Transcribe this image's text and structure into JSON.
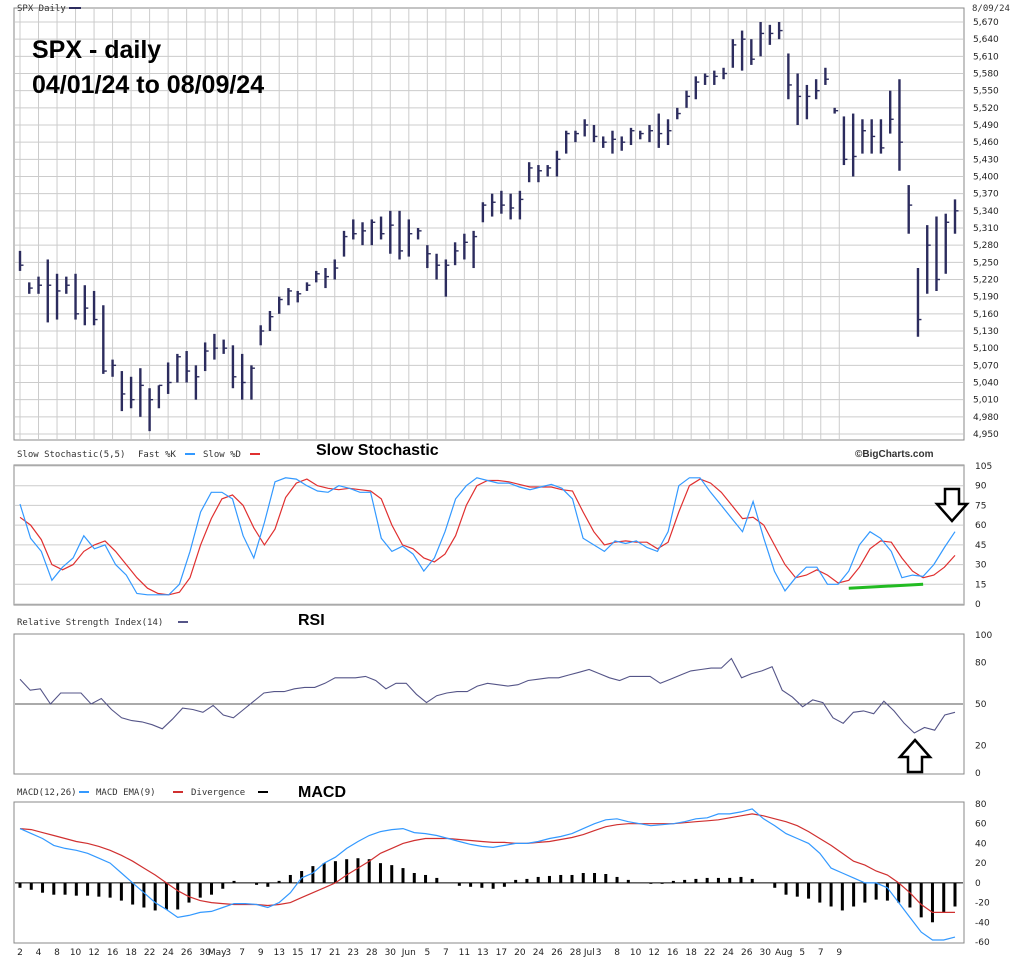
{
  "header": {
    "symbol_label": "SPX Daily",
    "date_label": "8/09/24",
    "watermark": "©BigCharts.com"
  },
  "annotations": {
    "title_line1": "SPX - daily",
    "title_line2": "04/01/24 to 08/09/24",
    "stoch_title": "Slow Stochastic",
    "rsi_title": "RSI",
    "macd_title": "MACD"
  },
  "colors": {
    "bar": "#2c2c5e",
    "fast": "#3399ff",
    "slow": "#e03030",
    "rsi": "#555588",
    "macd": "#3399ff",
    "ema": "#d03030",
    "hist": "#000000",
    "trend": "#22bb22",
    "grid": "#cccccc"
  },
  "chart_data": [
    {
      "type": "ohlc",
      "name": "price",
      "ylim": [
        4950,
        5670
      ],
      "yticks": [
        "5,670",
        "5,640",
        "5,610",
        "5,580",
        "5,550",
        "5,520",
        "5,490",
        "5,460",
        "5,430",
        "5,400",
        "5,370",
        "5,340",
        "5,310",
        "5,280",
        "5,250",
        "5,220",
        "5,190",
        "5,160",
        "5,130",
        "5,100",
        "5,070",
        "5,040",
        "5,010",
        "4,980",
        "4,950"
      ],
      "bars": [
        [
          5270,
          5235,
          5245
        ],
        [
          5215,
          5195,
          5205
        ],
        [
          5225,
          5195,
          5210
        ],
        [
          5255,
          5145,
          5210
        ],
        [
          5230,
          5150,
          5200
        ],
        [
          5225,
          5195,
          5210
        ],
        [
          5230,
          5150,
          5160
        ],
        [
          5210,
          5140,
          5170
        ],
        [
          5200,
          5140,
          5150
        ],
        [
          5175,
          5055,
          5060
        ],
        [
          5080,
          5050,
          5070
        ],
        [
          5060,
          4990,
          5020
        ],
        [
          5050,
          4995,
          5010
        ],
        [
          5065,
          4980,
          5035
        ],
        [
          5030,
          4955,
          5010
        ],
        [
          5035,
          4995,
          5035
        ],
        [
          5075,
          5020,
          5040
        ],
        [
          5090,
          5040,
          5085
        ],
        [
          5095,
          5040,
          5060
        ],
        [
          5070,
          5010,
          5050
        ],
        [
          5110,
          5060,
          5095
        ],
        [
          5125,
          5080,
          5100
        ],
        [
          5115,
          5090,
          5100
        ],
        [
          5105,
          5030,
          5050
        ],
        [
          5090,
          5010,
          5040
        ],
        [
          5070,
          5010,
          5065
        ],
        [
          5140,
          5105,
          5130
        ],
        [
          5165,
          5130,
          5155
        ],
        [
          5190,
          5160,
          5185
        ],
        [
          5205,
          5175,
          5200
        ],
        [
          5200,
          5180,
          5195
        ],
        [
          5215,
          5200,
          5210
        ],
        [
          5235,
          5215,
          5230
        ],
        [
          5240,
          5205,
          5225
        ],
        [
          5255,
          5220,
          5240
        ],
        [
          5305,
          5260,
          5295
        ],
        [
          5325,
          5290,
          5300
        ],
        [
          5320,
          5280,
          5305
        ],
        [
          5325,
          5280,
          5320
        ],
        [
          5330,
          5290,
          5300
        ],
        [
          5340,
          5265,
          5315
        ],
        [
          5340,
          5255,
          5270
        ],
        [
          5325,
          5260,
          5300
        ],
        [
          5310,
          5290,
          5305
        ],
        [
          5280,
          5240,
          5265
        ],
        [
          5265,
          5220,
          5245
        ],
        [
          5255,
          5190,
          5245
        ],
        [
          5285,
          5245,
          5270
        ],
        [
          5300,
          5255,
          5285
        ],
        [
          5305,
          5240,
          5295
        ],
        [
          5355,
          5320,
          5350
        ],
        [
          5370,
          5330,
          5355
        ],
        [
          5375,
          5335,
          5350
        ],
        [
          5370,
          5325,
          5345
        ],
        [
          5375,
          5325,
          5360
        ],
        [
          5425,
          5390,
          5415
        ],
        [
          5420,
          5390,
          5410
        ],
        [
          5420,
          5400,
          5415
        ],
        [
          5445,
          5400,
          5430
        ],
        [
          5480,
          5440,
          5475
        ],
        [
          5480,
          5460,
          5475
        ],
        [
          5500,
          5470,
          5490
        ],
        [
          5490,
          5460,
          5470
        ],
        [
          5470,
          5450,
          5460
        ],
        [
          5480,
          5440,
          5465
        ],
        [
          5470,
          5445,
          5460
        ],
        [
          5485,
          5455,
          5480
        ],
        [
          5480,
          5465,
          5475
        ],
        [
          5490,
          5460,
          5480
        ],
        [
          5510,
          5450,
          5475
        ],
        [
          5500,
          5455,
          5480
        ],
        [
          5520,
          5500,
          5510
        ],
        [
          5550,
          5520,
          5540
        ],
        [
          5575,
          5535,
          5565
        ],
        [
          5580,
          5560,
          5575
        ],
        [
          5585,
          5560,
          5575
        ],
        [
          5590,
          5570,
          5580
        ],
        [
          5640,
          5590,
          5630
        ],
        [
          5655,
          5585,
          5640
        ],
        [
          5640,
          5595,
          5605
        ],
        [
          5670,
          5610,
          5650
        ],
        [
          5665,
          5630,
          5650
        ],
        [
          5670,
          5640,
          5655
        ],
        [
          5615,
          5535,
          5560
        ],
        [
          5580,
          5490,
          5540
        ],
        [
          5560,
          5500,
          5540
        ],
        [
          5570,
          5535,
          5550
        ],
        [
          5590,
          5560,
          5570
        ],
        [
          5520,
          5510,
          5515
        ],
        [
          5505,
          5420,
          5430
        ],
        [
          5510,
          5400,
          5435
        ],
        [
          5500,
          5440,
          5480
        ],
        [
          5500,
          5440,
          5470
        ],
        [
          5500,
          5440,
          5450
        ],
        [
          5550,
          5475,
          5500
        ],
        [
          5570,
          5410,
          5460
        ],
        [
          5385,
          5300,
          5350
        ],
        [
          5240,
          5120,
          5150
        ],
        [
          5315,
          5195,
          5280
        ],
        [
          5330,
          5200,
          5220
        ],
        [
          5335,
          5230,
          5320
        ],
        [
          5360,
          5300,
          5340
        ]
      ],
      "xticks": [
        {
          "label": "2",
          "i": 0
        },
        {
          "label": "4",
          "i": 2
        },
        {
          "label": "8",
          "i": 4
        },
        {
          "label": "10",
          "i": 6
        },
        {
          "label": "12",
          "i": 8
        },
        {
          "label": "16",
          "i": 10
        },
        {
          "label": "18",
          "i": 12
        },
        {
          "label": "22",
          "i": 14
        },
        {
          "label": "24",
          "i": 16
        },
        {
          "label": "26",
          "i": 18
        },
        {
          "label": "30",
          "i": 20
        },
        {
          "label": "May",
          "i": 21.3
        },
        {
          "label": "3",
          "i": 22.5
        },
        {
          "label": "7",
          "i": 24
        },
        {
          "label": "9",
          "i": 26
        },
        {
          "label": "13",
          "i": 28
        },
        {
          "label": "15",
          "i": 30
        },
        {
          "label": "17",
          "i": 32
        },
        {
          "label": "21",
          "i": 34
        },
        {
          "label": "23",
          "i": 36
        },
        {
          "label": "28",
          "i": 38
        },
        {
          "label": "30",
          "i": 40
        },
        {
          "label": "Jun",
          "i": 42
        },
        {
          "label": "5",
          "i": 44
        },
        {
          "label": "7",
          "i": 46
        },
        {
          "label": "11",
          "i": 48
        },
        {
          "label": "13",
          "i": 50
        },
        {
          "label": "17",
          "i": 52
        },
        {
          "label": "20",
          "i": 54
        },
        {
          "label": "24",
          "i": 56
        },
        {
          "label": "26",
          "i": 58
        },
        {
          "label": "28",
          "i": 60
        },
        {
          "label": "Jul",
          "i": 61.5
        },
        {
          "label": "3",
          "i": 62.5
        },
        {
          "label": "8",
          "i": 64.5
        },
        {
          "label": "10",
          "i": 66.5
        },
        {
          "label": "12",
          "i": 68.5
        },
        {
          "label": "16",
          "i": 70.5
        },
        {
          "label": "18",
          "i": 72.5
        },
        {
          "label": "22",
          "i": 74.5
        },
        {
          "label": "24",
          "i": 76.5
        },
        {
          "label": "26",
          "i": 78.5
        },
        {
          "label": "30",
          "i": 80.5
        },
        {
          "label": "Aug",
          "i": 82.5
        },
        {
          "label": "5",
          "i": 84.5
        },
        {
          "label": "7",
          "i": 86.5
        },
        {
          "label": "9",
          "i": 88.5
        }
      ]
    },
    {
      "type": "line",
      "name": "stochastic",
      "label": "Slow Stochastic(5,5)",
      "series_labels": [
        "Fast %K",
        "Slow %D"
      ],
      "ylim": [
        0,
        105
      ],
      "yticks": [
        "105",
        "90",
        "75",
        "60",
        "45",
        "30",
        "15",
        "0"
      ],
      "fast": [
        76,
        50,
        40,
        18,
        28,
        35,
        52,
        42,
        45,
        30,
        22,
        8,
        7,
        7,
        7,
        15,
        40,
        70,
        85,
        85,
        80,
        52,
        35,
        62,
        93,
        96,
        95,
        90,
        86,
        85,
        90,
        88,
        85,
        85,
        50,
        40,
        44,
        38,
        25,
        35,
        55,
        80,
        90,
        96,
        94,
        92,
        92,
        89,
        87,
        89,
        91,
        88,
        80,
        50,
        45,
        40,
        48,
        46,
        48,
        43,
        40,
        55,
        90,
        96,
        96,
        85,
        75,
        65,
        55,
        78,
        50,
        25,
        10,
        20,
        28,
        28,
        15,
        15,
        25,
        45,
        55,
        50,
        40,
        20,
        22,
        21,
        30,
        43,
        55
      ],
      "slow": [
        66,
        60,
        49,
        30,
        26,
        30,
        40,
        45,
        48,
        40,
        30,
        20,
        12,
        8,
        7,
        9,
        20,
        45,
        65,
        80,
        83,
        75,
        58,
        45,
        57,
        81,
        92,
        95,
        90,
        88,
        87,
        88,
        87,
        86,
        80,
        60,
        45,
        42,
        35,
        32,
        38,
        52,
        75,
        90,
        94,
        94,
        93,
        91,
        89,
        89,
        89,
        87,
        86,
        70,
        55,
        45,
        47,
        48,
        47,
        47,
        42,
        47,
        70,
        90,
        95,
        92,
        85,
        75,
        65,
        66,
        60,
        45,
        30,
        20,
        22,
        26,
        22,
        16,
        18,
        28,
        42,
        48,
        47,
        35,
        25,
        20,
        22,
        28,
        37
      ],
      "trendline": [
        [
          78,
          12
        ],
        [
          85,
          15
        ]
      ],
      "arrow": "down"
    },
    {
      "type": "line",
      "name": "rsi",
      "label": "Relative Strength Index(14)",
      "ylim": [
        0,
        100
      ],
      "yticks": [
        "100",
        "80",
        "50",
        "20",
        "0"
      ],
      "reference_line": 50,
      "values": [
        68,
        60,
        61,
        50,
        58,
        58,
        58,
        50,
        54,
        46,
        40,
        38,
        37,
        35,
        32,
        39,
        47,
        46,
        44,
        49,
        42,
        40,
        46,
        52,
        58,
        59,
        59,
        61,
        62,
        62,
        65,
        69,
        69,
        69,
        70,
        67,
        61,
        65,
        65,
        57,
        51,
        56,
        58,
        59,
        59,
        63,
        65,
        64,
        63,
        64,
        67,
        68,
        69,
        69,
        71,
        73,
        75,
        72,
        69,
        67,
        70,
        70,
        70,
        65,
        68,
        71,
        74,
        75,
        76,
        76,
        83,
        69,
        72,
        74,
        77,
        60,
        55,
        48,
        53,
        51,
        40,
        36,
        44,
        45,
        43,
        52,
        45,
        36,
        29,
        33,
        31,
        42,
        44
      ]
    },
    {
      "type": "line",
      "name": "macd",
      "label": "MACD(12,26)",
      "series_labels": [
        "MACD EMA(9)",
        "Divergence"
      ],
      "ylim": [
        -60,
        80
      ],
      "yticks": [
        "80",
        "60",
        "40",
        "20",
        "0",
        "-20",
        "-40",
        "-60"
      ],
      "macd": [
        55,
        50,
        45,
        38,
        35,
        33,
        30,
        25,
        20,
        10,
        0,
        -10,
        -20,
        -27,
        -35,
        -33,
        -30,
        -29,
        -25,
        -21,
        -21,
        -22,
        -25,
        -20,
        -10,
        5,
        10,
        20,
        26,
        35,
        42,
        48,
        52,
        54,
        55,
        51,
        50,
        48,
        45,
        42,
        39,
        37,
        36,
        38,
        40,
        40,
        42,
        45,
        47,
        50,
        55,
        60,
        64,
        65,
        62,
        60,
        58,
        59,
        60,
        62,
        65,
        66,
        70,
        70,
        72,
        75,
        65,
        58,
        50,
        45,
        40,
        30,
        15,
        10,
        5,
        0,
        0,
        -5,
        -20,
        -35,
        -50,
        -58,
        -58,
        -55
      ],
      "ema": [
        55,
        54,
        51,
        48,
        45,
        42,
        40,
        37,
        33,
        28,
        22,
        15,
        8,
        0,
        -8,
        -14,
        -18,
        -20,
        -21,
        -22,
        -22,
        -22,
        -23,
        -22,
        -20,
        -15,
        -10,
        -5,
        0,
        8,
        15,
        22,
        30,
        35,
        40,
        43,
        45,
        45,
        45,
        44,
        43,
        42,
        41,
        41,
        40,
        40,
        41,
        42,
        44,
        46,
        49,
        53,
        57,
        59,
        60,
        60,
        60,
        60,
        60,
        61,
        62,
        63,
        64,
        66,
        68,
        70,
        68,
        65,
        62,
        58,
        52,
        45,
        38,
        30,
        22,
        18,
        12,
        8,
        0,
        -10,
        -22,
        -30,
        -30,
        -30
      ],
      "divergence": [
        -5,
        -7,
        -10,
        -12,
        -12,
        -13,
        -13,
        -14,
        -15,
        -18,
        -22,
        -25,
        -28,
        -27,
        -27,
        -20,
        -15,
        -12,
        -6,
        2,
        0,
        -2,
        -4,
        2,
        8,
        12,
        17,
        20,
        22,
        24,
        25,
        24,
        20,
        18,
        15,
        10,
        8,
        5,
        0,
        -3,
        -4,
        -5,
        -6,
        -4,
        3,
        4,
        6,
        7,
        8,
        8,
        10,
        10,
        9,
        6,
        3,
        0,
        -1,
        -1,
        2,
        3,
        4,
        5,
        5,
        5,
        6,
        4,
        0,
        -5,
        -12,
        -14,
        -16,
        -20,
        -24,
        -28,
        -24,
        -20,
        -17,
        -18,
        -20,
        -25,
        -35,
        -40,
        -30,
        -24
      ]
    }
  ]
}
